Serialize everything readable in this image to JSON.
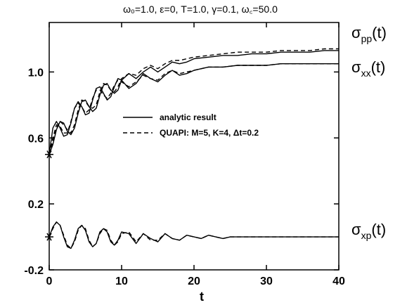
{
  "title": "ω₀=1.0, ε=0, T=1.0, γ=0.1, ω꜀=50.0",
  "chart_data": {
    "type": "line",
    "xlabel": "t",
    "ylabel": "",
    "xlim": [
      0,
      40
    ],
    "ylim": [
      -0.2,
      1.3
    ],
    "xticks": [
      0,
      10,
      20,
      30,
      40
    ],
    "yticks": [
      -0.2,
      0.2,
      0.6,
      1.0
    ],
    "grid": false,
    "legend": {
      "placement": "center",
      "entries": [
        {
          "label": "analytic result",
          "style": "solid"
        },
        {
          "label": "QUAPI: M=5, K=4, Δt=0.2",
          "style": "dashed"
        }
      ]
    },
    "curve_labels": [
      {
        "main": "σ",
        "sub": "pp",
        "suffix": "(t)"
      },
      {
        "main": "σ",
        "sub": "xx",
        "suffix": "(t)"
      },
      {
        "main": "σ",
        "sub": "xp",
        "suffix": "(t)"
      }
    ],
    "start_points": [
      {
        "x": 0,
        "y": 0.5
      },
      {
        "x": 0,
        "y": 0.0
      }
    ],
    "series": [
      {
        "style": "solid",
        "curve": "pp",
        "x": [
          0,
          0.5,
          1,
          1.5,
          2,
          2.5,
          3,
          3.5,
          4,
          4.5,
          5,
          5.5,
          6,
          6.5,
          7,
          7.5,
          8,
          8.5,
          9,
          9.5,
          10,
          11,
          12,
          13,
          14,
          15,
          16,
          17,
          18,
          19,
          20,
          22,
          24,
          26,
          28,
          30,
          32,
          34,
          36,
          38,
          40
        ],
        "y": [
          0.5,
          0.56,
          0.65,
          0.7,
          0.69,
          0.64,
          0.62,
          0.66,
          0.75,
          0.82,
          0.83,
          0.79,
          0.76,
          0.78,
          0.86,
          0.92,
          0.93,
          0.89,
          0.87,
          0.89,
          0.95,
          0.99,
          0.96,
          1.0,
          1.03,
          1.0,
          1.03,
          1.06,
          1.05,
          1.06,
          1.08,
          1.09,
          1.1,
          1.1,
          1.11,
          1.11,
          1.12,
          1.12,
          1.12,
          1.13,
          1.13
        ]
      },
      {
        "style": "solid",
        "curve": "xx",
        "x": [
          0,
          0.5,
          1,
          1.5,
          2,
          2.5,
          3,
          3.5,
          4,
          4.5,
          5,
          5.5,
          6,
          6.5,
          7,
          7.5,
          8,
          8.5,
          9,
          9.5,
          10,
          11,
          12,
          13,
          14,
          15,
          16,
          17,
          18,
          19,
          20,
          22,
          24,
          26,
          28,
          30,
          32,
          34,
          36,
          38,
          40
        ],
        "y": [
          0.5,
          0.66,
          0.7,
          0.66,
          0.61,
          0.62,
          0.69,
          0.78,
          0.82,
          0.79,
          0.74,
          0.75,
          0.83,
          0.9,
          0.91,
          0.87,
          0.83,
          0.85,
          0.91,
          0.96,
          0.95,
          0.9,
          0.93,
          0.99,
          0.96,
          0.94,
          0.98,
          1.01,
          0.98,
          0.99,
          1.01,
          1.03,
          1.03,
          1.04,
          1.04,
          1.04,
          1.05,
          1.05,
          1.05,
          1.05,
          1.05
        ]
      },
      {
        "style": "solid",
        "curve": "xp",
        "x": [
          0,
          0.5,
          1,
          1.5,
          2,
          2.5,
          3,
          3.5,
          4,
          4.5,
          5,
          5.5,
          6,
          6.5,
          7,
          7.5,
          8,
          8.5,
          9,
          9.5,
          10,
          11,
          12,
          13,
          14,
          15,
          16,
          17,
          18,
          19,
          20,
          21,
          22,
          23,
          24,
          25,
          26,
          28,
          30,
          32,
          34,
          36,
          38,
          40
        ],
        "y": [
          0,
          0.06,
          0.09,
          0.07,
          0.0,
          -0.06,
          -0.07,
          -0.02,
          0.05,
          0.07,
          0.04,
          -0.03,
          -0.06,
          -0.04,
          0.03,
          0.05,
          0.03,
          -0.03,
          -0.05,
          -0.02,
          0.03,
          0.02,
          -0.04,
          0.02,
          -0.01,
          -0.03,
          0.02,
          -0.01,
          -0.02,
          0.01,
          0.0,
          -0.01,
          0.01,
          0.0,
          -0.01,
          0.0,
          0.0,
          0.0,
          0.0,
          0.0,
          0.0,
          0.0,
          0.0,
          0.0
        ]
      },
      {
        "style": "dashed",
        "curve": "pp",
        "x": [
          0,
          0.5,
          1,
          1.5,
          2,
          2.5,
          3,
          3.5,
          4,
          4.5,
          5,
          5.5,
          6,
          6.5,
          7,
          7.5,
          8,
          8.5,
          9,
          9.5,
          10,
          11,
          12,
          13,
          14,
          15,
          16,
          17,
          18,
          19,
          20,
          22,
          24,
          26,
          28,
          30,
          32,
          34,
          36,
          38,
          40
        ],
        "y": [
          0.5,
          0.58,
          0.66,
          0.7,
          0.68,
          0.65,
          0.63,
          0.68,
          0.77,
          0.83,
          0.82,
          0.79,
          0.78,
          0.8,
          0.88,
          0.93,
          0.92,
          0.89,
          0.88,
          0.91,
          0.96,
          0.99,
          0.98,
          1.02,
          1.04,
          1.02,
          1.05,
          1.07,
          1.07,
          1.08,
          1.09,
          1.1,
          1.11,
          1.12,
          1.12,
          1.12,
          1.13,
          1.13,
          1.13,
          1.14,
          1.14
        ]
      },
      {
        "style": "dashed",
        "curve": "xx",
        "x": [
          0,
          0.5,
          1,
          1.5,
          2,
          2.5,
          3,
          3.5,
          4,
          4.5,
          5,
          5.5,
          6,
          6.5,
          7,
          7.5,
          8,
          8.5,
          9,
          9.5,
          10,
          11,
          12,
          13,
          14,
          15,
          16,
          17,
          18,
          19,
          20,
          22,
          24,
          26,
          28,
          30,
          32,
          34,
          36,
          38,
          40
        ],
        "y": [
          0.5,
          0.6,
          0.68,
          0.67,
          0.63,
          0.63,
          0.7,
          0.78,
          0.81,
          0.79,
          0.75,
          0.77,
          0.84,
          0.89,
          0.89,
          0.86,
          0.84,
          0.87,
          0.92,
          0.95,
          0.94,
          0.91,
          0.94,
          0.98,
          0.96,
          0.95,
          0.99,
          1.01,
          0.99,
          1.0,
          1.01,
          1.03,
          1.03,
          1.04,
          1.04,
          1.04,
          1.05,
          1.05,
          1.05,
          1.05,
          1.05
        ]
      },
      {
        "style": "dashed",
        "curve": "xp",
        "x": [
          0,
          0.5,
          1,
          1.5,
          2,
          2.5,
          3,
          3.5,
          4,
          4.5,
          5,
          5.5,
          6,
          6.5,
          7,
          7.5,
          8,
          8.5,
          9,
          9.5,
          10,
          11,
          12,
          13,
          14,
          15,
          16,
          17,
          18,
          19,
          20,
          21,
          22,
          23,
          24,
          25,
          26,
          28,
          30,
          32,
          34,
          36,
          38,
          40
        ],
        "y": [
          0,
          0.05,
          0.09,
          0.07,
          0.01,
          -0.05,
          -0.07,
          -0.03,
          0.04,
          0.07,
          0.05,
          -0.02,
          -0.06,
          -0.04,
          0.02,
          0.05,
          0.04,
          -0.02,
          -0.05,
          -0.03,
          0.02,
          0.03,
          -0.03,
          0.02,
          -0.02,
          -0.02,
          0.02,
          -0.01,
          -0.02,
          0.01,
          0.0,
          -0.01,
          0.01,
          0.0,
          -0.01,
          0.0,
          0.0,
          0.0,
          0.0,
          0.0,
          0.0,
          0.0,
          0.0,
          0.0
        ]
      }
    ]
  }
}
